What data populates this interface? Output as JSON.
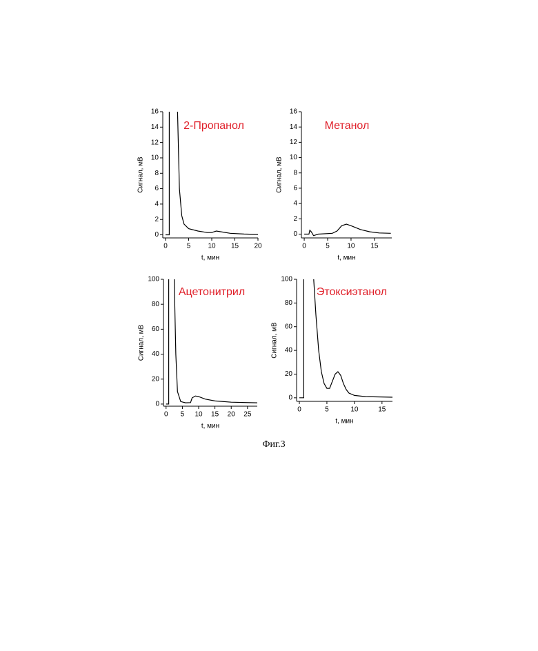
{
  "caption": "Фиг.3",
  "chart_data": [
    {
      "type": "line",
      "annotation": "2-Пропанол",
      "annotation_color": "#e0202a",
      "xlabel": "t, мин",
      "ylabel": "Сигнал, мВ",
      "xlim": [
        -0.6,
        20
      ],
      "ylim": [
        -0.4,
        16
      ],
      "xticks": [
        0,
        5,
        10,
        15,
        20
      ],
      "yticks": [
        0,
        2,
        4,
        6,
        8,
        10,
        12,
        14,
        16
      ],
      "color": "#000000",
      "x": [
        0,
        0.8,
        0.8,
        1.6,
        2.6,
        3,
        3.5,
        4,
        5,
        7,
        9,
        10,
        11,
        12,
        14,
        17,
        20
      ],
      "values": [
        0,
        0,
        16,
        null,
        16,
        6,
        2.5,
        1.4,
        0.8,
        0.5,
        0.3,
        0.3,
        0.5,
        0.4,
        0.2,
        0.1,
        0.05
      ]
    },
    {
      "type": "line",
      "annotation": "Метанол",
      "annotation_color": "#e0202a",
      "xlabel": "t, мин",
      "ylabel": "Сигнал, мВ",
      "xlim": [
        -0.6,
        18.7
      ],
      "ylim": [
        -0.5,
        16
      ],
      "xticks": [
        0,
        5,
        10,
        15
      ],
      "yticks": [
        0,
        2,
        4,
        6,
        8,
        10,
        12,
        14,
        16
      ],
      "color": "#000000",
      "x": [
        0,
        1,
        1.2,
        1.5,
        2,
        3,
        6,
        7,
        8,
        9,
        10,
        12,
        14,
        16,
        18.5
      ],
      "values": [
        0,
        0,
        0.5,
        0.3,
        -0.2,
        0,
        0.1,
        0.4,
        1.1,
        1.3,
        1.1,
        0.6,
        0.3,
        0.15,
        0.1
      ]
    },
    {
      "type": "line",
      "annotation": "Ацетонитрил",
      "annotation_color": "#e0202a",
      "xlabel": "t, мин",
      "ylabel": "Сигнал, мВ",
      "xlim": [
        -0.8,
        28
      ],
      "ylim": [
        -1.7,
        100
      ],
      "xticks": [
        0,
        5,
        10,
        15,
        20,
        25
      ],
      "yticks": [
        0,
        20,
        40,
        60,
        80,
        100
      ],
      "color": "#000000",
      "x": [
        0,
        0.8,
        0.8,
        1.6,
        2.5,
        3,
        3.5,
        4.5,
        6,
        7.5,
        8,
        9,
        10,
        12,
        15,
        20,
        28
      ],
      "values": [
        0,
        0,
        100,
        null,
        100,
        40,
        10,
        2,
        1,
        1.2,
        5,
        6.5,
        6,
        4,
        2.5,
        1.5,
        1
      ]
    },
    {
      "type": "line",
      "annotation": "Этоксиэтанол",
      "annotation_color": "#e0202a",
      "xlabel": "t, мин",
      "ylabel": "Сигнал, мВ",
      "xlim": [
        -0.5,
        16.9
      ],
      "ylim": [
        -3,
        100
      ],
      "xticks": [
        0,
        5,
        10,
        15
      ],
      "yticks": [
        0,
        20,
        40,
        60,
        80,
        100
      ],
      "color": "#000000",
      "x": [
        0,
        0.8,
        0.8,
        1.6,
        2.6,
        3,
        3.5,
        4,
        4.5,
        5,
        5.5,
        6,
        6.5,
        7,
        7.5,
        8,
        8.5,
        9,
        10,
        12,
        16.9
      ],
      "values": [
        0,
        0,
        100,
        null,
        100,
        70,
        40,
        22,
        12,
        8,
        8,
        14,
        20,
        22,
        19,
        12,
        7,
        4,
        2,
        1,
        0.5
      ]
    }
  ]
}
